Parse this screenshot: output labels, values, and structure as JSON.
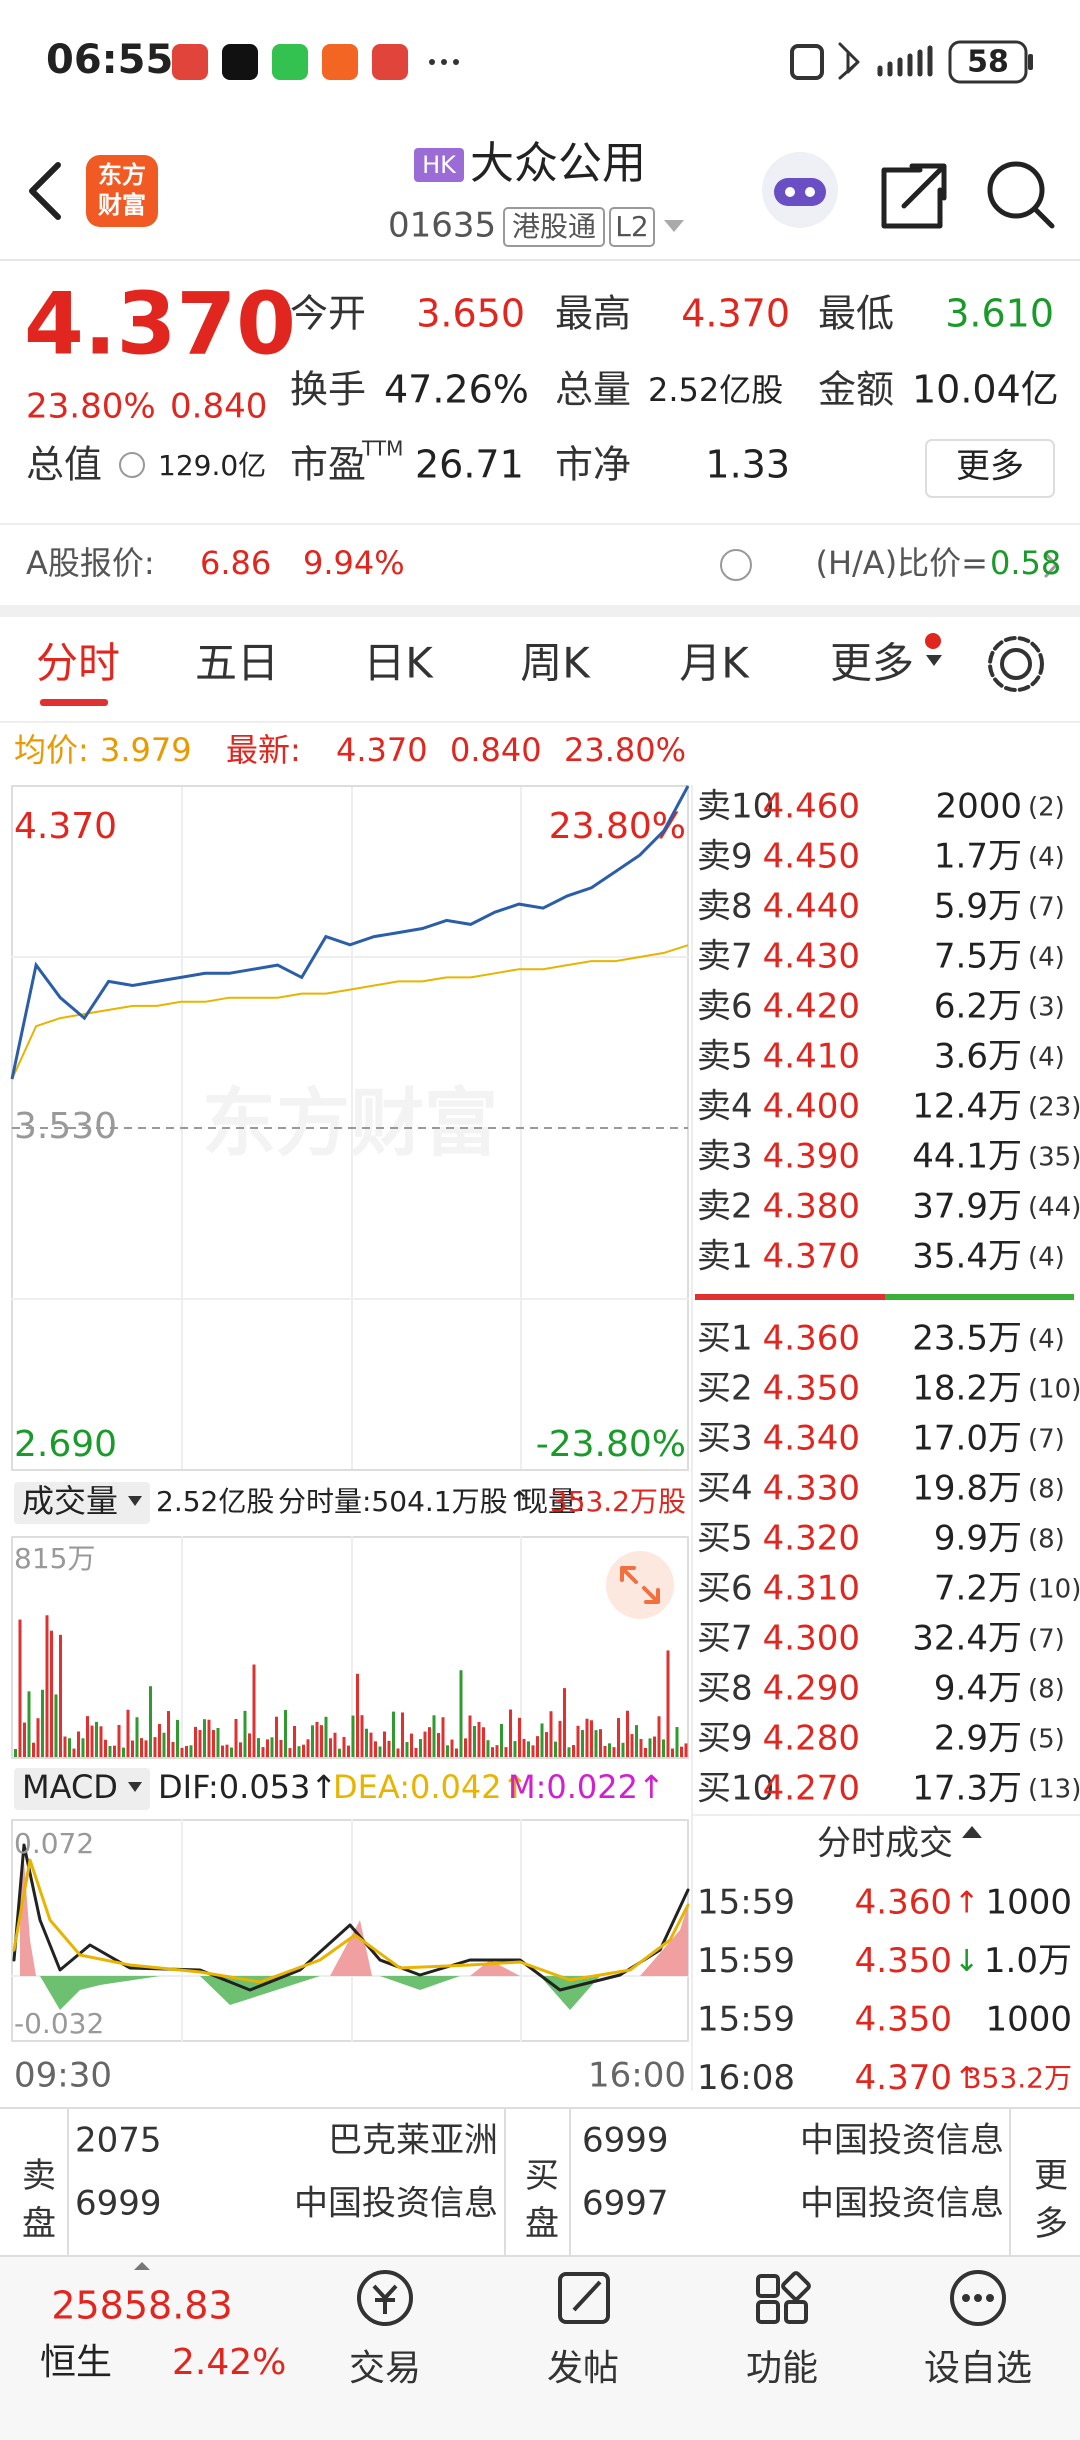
{
  "status_bar": {
    "time": "06:55",
    "battery": "58"
  },
  "header": {
    "logo": [
      "东方",
      "财富"
    ],
    "market": "HK",
    "name": "大众公用",
    "code": "01635",
    "tags": [
      "港股通",
      "L2"
    ]
  },
  "quote": {
    "price": "4.370",
    "change_pct": "23.80%",
    "change": "0.840",
    "stats": [
      {
        "label": "今开",
        "value": "3.650"
      },
      {
        "label": "最高",
        "value": "4.370"
      },
      {
        "label": "最低",
        "value": "3.610"
      },
      {
        "label": "换手",
        "value": "47.26%"
      },
      {
        "label": "总量",
        "value": "2.52亿股"
      },
      {
        "label": "金额",
        "value": "10.04亿"
      }
    ],
    "market_cap": {
      "label": "总值",
      "value": "129.0亿"
    },
    "pe": {
      "label": "市盈",
      "sup": "TTM",
      "value": "26.71"
    },
    "pb": {
      "label": "市净",
      "value": "1.33"
    },
    "more": "更多"
  },
  "a_share": {
    "label": "A股报价:",
    "price": "6.86",
    "change_pct": "9.94%",
    "ratio_label": "(H/A)比价=",
    "ratio": "0.58"
  },
  "tabs": [
    "分时",
    "五日",
    "日K",
    "周K",
    "月K",
    "更多"
  ],
  "chart_info": {
    "avg_label": "均价:",
    "avg": "3.979",
    "last_label": "最新:",
    "last": "4.370",
    "change": "0.840",
    "change_pct": "23.80%"
  },
  "chart_data": {
    "type": "line",
    "watermark": "东方财富",
    "series": [
      {
        "color": "#2a5ea8",
        "values": [
          3.65,
          3.93,
          3.85,
          3.8,
          3.89,
          3.88,
          3.89,
          3.9,
          3.91,
          3.91,
          3.92,
          3.93,
          3.9,
          4.0,
          3.98,
          4.0,
          4.01,
          4.02,
          4.04,
          4.03,
          4.06,
          4.08,
          4.07,
          4.1,
          4.12,
          4.16,
          4.2,
          4.26,
          4.37
        ]
      },
      {
        "color": "#e8b400",
        "values": [
          3.65,
          3.78,
          3.8,
          3.81,
          3.82,
          3.83,
          3.83,
          3.84,
          3.84,
          3.85,
          3.85,
          3.85,
          3.86,
          3.86,
          3.87,
          3.88,
          3.89,
          3.89,
          3.9,
          3.9,
          3.91,
          3.92,
          3.92,
          3.93,
          3.94,
          3.94,
          3.95,
          3.96,
          3.979
        ]
      }
    ],
    "ylim": [
      2.69,
      4.37
    ],
    "yticks": [
      {
        "value": 4.37,
        "label": "4.370"
      },
      {
        "value": 3.53,
        "label": "3.530"
      },
      {
        "value": 2.69,
        "label": "2.690"
      }
    ],
    "pct_labels": [
      "23.80%",
      "-23.80%"
    ],
    "x_labels": [
      "09:30",
      "16:00"
    ]
  },
  "order_book": {
    "asks": [
      {
        "label": "卖10",
        "price": "4.460",
        "volume": "2000",
        "count": "(2)"
      },
      {
        "label": "卖9",
        "price": "4.450",
        "volume": "1.7万",
        "count": "(4)"
      },
      {
        "label": "卖8",
        "price": "4.440",
        "volume": "5.9万",
        "count": "(7)"
      },
      {
        "label": "卖7",
        "price": "4.430",
        "volume": "7.5万",
        "count": "(4)"
      },
      {
        "label": "卖6",
        "price": "4.420",
        "volume": "6.2万",
        "count": "(3)"
      },
      {
        "label": "卖5",
        "price": "4.410",
        "volume": "3.6万",
        "count": "(4)"
      },
      {
        "label": "卖4",
        "price": "4.400",
        "volume": "12.4万",
        "count": "(23)"
      },
      {
        "label": "卖3",
        "price": "4.390",
        "volume": "44.1万",
        "count": "(35)"
      },
      {
        "label": "卖2",
        "price": "4.380",
        "volume": "37.9万",
        "count": "(44)"
      },
      {
        "label": "卖1",
        "price": "4.370",
        "volume": "35.4万",
        "count": "(4)"
      }
    ],
    "bids": [
      {
        "label": "买1",
        "price": "4.360",
        "volume": "23.5万",
        "count": "(4)"
      },
      {
        "label": "买2",
        "price": "4.350",
        "volume": "18.2万",
        "count": "(10)"
      },
      {
        "label": "买3",
        "price": "4.340",
        "volume": "17.0万",
        "count": "(7)"
      },
      {
        "label": "买4",
        "price": "4.330",
        "volume": "19.8万",
        "count": "(8)"
      },
      {
        "label": "买5",
        "price": "4.320",
        "volume": "9.9万",
        "count": "(8)"
      },
      {
        "label": "买6",
        "price": "4.310",
        "volume": "7.2万",
        "count": "(10)"
      },
      {
        "label": "买7",
        "price": "4.300",
        "volume": "32.4万",
        "count": "(7)"
      },
      {
        "label": "买8",
        "price": "4.290",
        "volume": "9.4万",
        "count": "(8)"
      },
      {
        "label": "买9",
        "price": "4.280",
        "volume": "2.9万",
        "count": "(5)"
      },
      {
        "label": "买10",
        "price": "4.270",
        "volume": "17.3万",
        "count": "(13)"
      }
    ]
  },
  "volume": {
    "label": "成交量",
    "total": "2.52亿股",
    "period": "分时量:504.1万股↑",
    "now_label": "现量:",
    "now": "353.2万股",
    "max": "815万"
  },
  "macd": {
    "label": "MACD",
    "dif": "DIF:0.053↑",
    "dea": "DEA:0.042↑",
    "m": "M:0.022↑",
    "max": "0.072",
    "min": "-0.032"
  },
  "trades": {
    "title": "分时成交",
    "rows": [
      {
        "time": "15:59",
        "price": "4.360",
        "dir": "↑",
        "volume": "1000"
      },
      {
        "time": "15:59",
        "price": "4.350",
        "dir": "↓",
        "volume": "1.0万"
      },
      {
        "time": "15:59",
        "price": "4.350",
        "volume": "1000"
      },
      {
        "time": "16:08",
        "price": "4.370",
        "dir": "↑",
        "volume": "353.2万"
      }
    ]
  },
  "brokers": {
    "sell_label": "卖盘",
    "buy_label": "买盘",
    "more": "更多",
    "sell": [
      {
        "code": "2075",
        "name": "巴克莱亚洲"
      },
      {
        "code": "6999",
        "name": "中国投资信息"
      }
    ],
    "buy": [
      {
        "code": "6999",
        "name": "中国投资信息"
      },
      {
        "code": "6997",
        "name": "中国投资信息"
      }
    ]
  },
  "bottom_nav": {
    "index_value": "25858.83",
    "index_name": "恒生",
    "index_change": "2.42%",
    "items": [
      "交易",
      "发帖",
      "功能",
      "设自选"
    ]
  }
}
